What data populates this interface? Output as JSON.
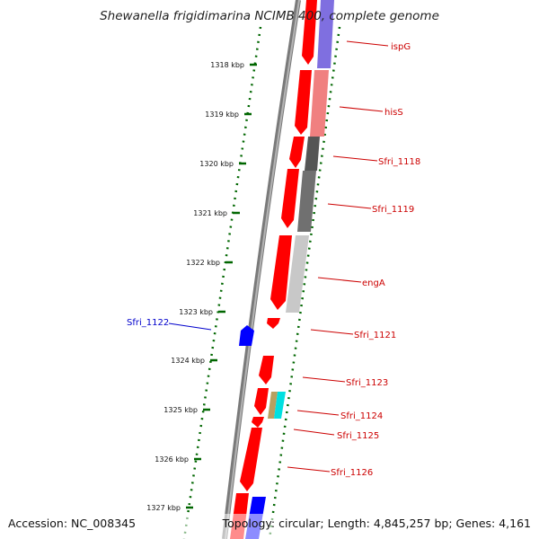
{
  "title": "Shewanella frigidimarina NCIMB 400, complete genome",
  "footer": {
    "accession": "Accession: NC_008345",
    "topology": "Topology: circular; Length: 4,845,257 bp; Genes: 4,161"
  },
  "colors": {
    "cds": "#ff0000",
    "reverse_strand_label": "#0000cc",
    "forward_strand_label": "#cc0000",
    "backbone": "#808080",
    "tick_dots": "#006600"
  },
  "scale": {
    "kbp_labels": [
      "1318 kbp",
      "1319 kbp",
      "1320 kbp",
      "1321 kbp",
      "1322 kbp",
      "1323 kbp",
      "1324 kbp",
      "1325 kbp",
      "1326 kbp",
      "1327 kbp"
    ]
  },
  "genes": [
    {
      "name": "ispG",
      "strand": "+"
    },
    {
      "name": "hisS",
      "strand": "+"
    },
    {
      "name": "Sfri_1118",
      "strand": "+"
    },
    {
      "name": "Sfri_1119",
      "strand": "+"
    },
    {
      "name": "engA",
      "strand": "+"
    },
    {
      "name": "Sfri_1121",
      "strand": "+"
    },
    {
      "name": "Sfri_1122",
      "strand": "-"
    },
    {
      "name": "Sfri_1123",
      "strand": "+"
    },
    {
      "name": "Sfri_1124",
      "strand": "+"
    },
    {
      "name": "Sfri_1125",
      "strand": "+"
    },
    {
      "name": "Sfri_1126",
      "strand": "+"
    }
  ]
}
